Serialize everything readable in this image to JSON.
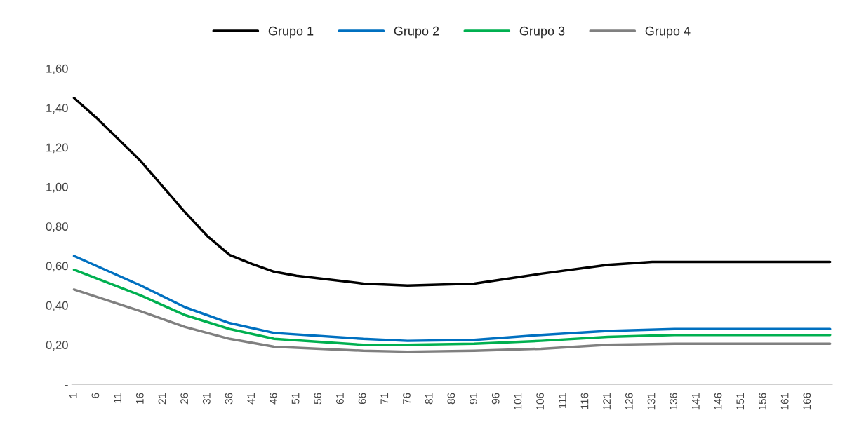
{
  "chart_data": {
    "type": "line",
    "xlim": [
      0.5,
      171.5
    ],
    "xticks": [
      1,
      6,
      11,
      16,
      21,
      26,
      31,
      36,
      41,
      46,
      51,
      56,
      61,
      66,
      71,
      76,
      81,
      86,
      91,
      96,
      101,
      106,
      111,
      116,
      121,
      126,
      131,
      136,
      141,
      146,
      151,
      156,
      161,
      166
    ],
    "ylim": [
      0,
      1.6
    ],
    "yticks": [
      {
        "value": 0,
        "label": "-"
      },
      {
        "value": 0.2,
        "label": "0,20"
      },
      {
        "value": 0.4,
        "label": "0,40"
      },
      {
        "value": 0.6,
        "label": "0,60"
      },
      {
        "value": 0.8,
        "label": "0,80"
      },
      {
        "value": 1.0,
        "label": "1,00"
      },
      {
        "value": 1.2,
        "label": "1,20"
      },
      {
        "value": 1.4,
        "label": "1,40"
      },
      {
        "value": 1.6,
        "label": "1,60"
      }
    ],
    "grid": false,
    "legend": "top",
    "marker": "none",
    "line_style": "solid",
    "series": [
      {
        "name": "Grupo 1",
        "color": "#000000",
        "x": [
          1,
          6,
          11,
          16,
          21,
          26,
          31,
          36,
          41,
          46,
          51,
          66,
          76,
          91,
          106,
          121,
          131,
          171
        ],
        "values": [
          1.45,
          1.35,
          1.24,
          1.13,
          1.0,
          0.87,
          0.75,
          0.655,
          0.61,
          0.57,
          0.55,
          0.51,
          0.5,
          0.51,
          0.56,
          0.605,
          0.62,
          0.62
        ]
      },
      {
        "name": "Grupo 2",
        "color": "#0070c0",
        "x": [
          1,
          16,
          26,
          36,
          46,
          66,
          76,
          91,
          106,
          121,
          136,
          171
        ],
        "values": [
          0.65,
          0.5,
          0.39,
          0.31,
          0.26,
          0.23,
          0.22,
          0.225,
          0.25,
          0.27,
          0.28,
          0.28
        ]
      },
      {
        "name": "Grupo 3",
        "color": "#00b050",
        "x": [
          1,
          16,
          26,
          36,
          46,
          66,
          76,
          91,
          106,
          121,
          136,
          171
        ],
        "values": [
          0.58,
          0.45,
          0.35,
          0.28,
          0.23,
          0.2,
          0.2,
          0.205,
          0.22,
          0.24,
          0.25,
          0.25
        ]
      },
      {
        "name": "Grupo 4",
        "color": "#808080",
        "x": [
          1,
          16,
          26,
          36,
          46,
          66,
          76,
          91,
          106,
          121,
          136,
          171
        ],
        "values": [
          0.48,
          0.37,
          0.29,
          0.23,
          0.19,
          0.17,
          0.165,
          0.17,
          0.18,
          0.2,
          0.205,
          0.205
        ]
      }
    ]
  }
}
